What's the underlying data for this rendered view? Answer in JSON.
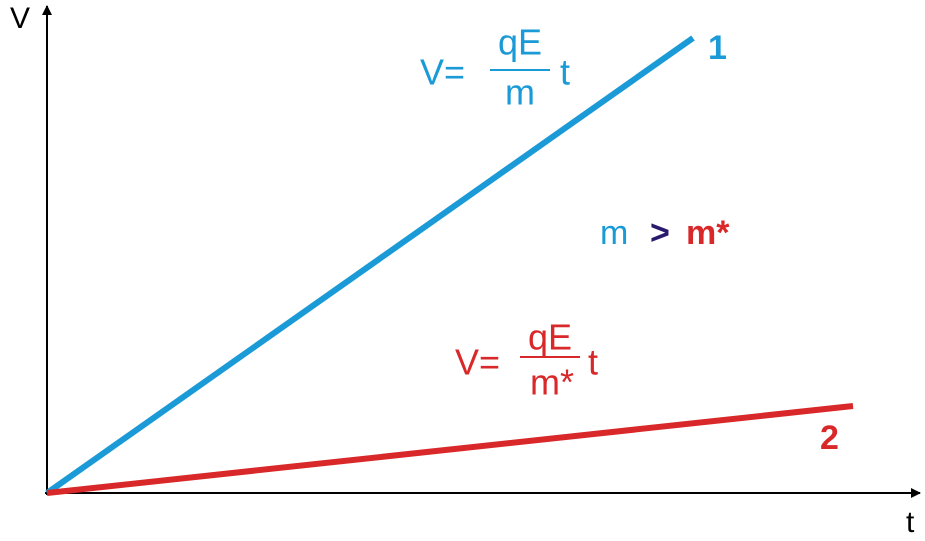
{
  "axes": {
    "y_label": "V",
    "x_label": "t"
  },
  "lines": [
    {
      "label": "1",
      "formula": {
        "lhs": "V=",
        "numerator": "qE",
        "denominator": "m",
        "variable": "t"
      }
    },
    {
      "label": "2",
      "formula": {
        "lhs": "V=",
        "numerator": "qE",
        "denominator": "m*",
        "variable": "t"
      }
    }
  ],
  "comparison": {
    "left": "m",
    "operator": ">",
    "right": "m*"
  }
}
